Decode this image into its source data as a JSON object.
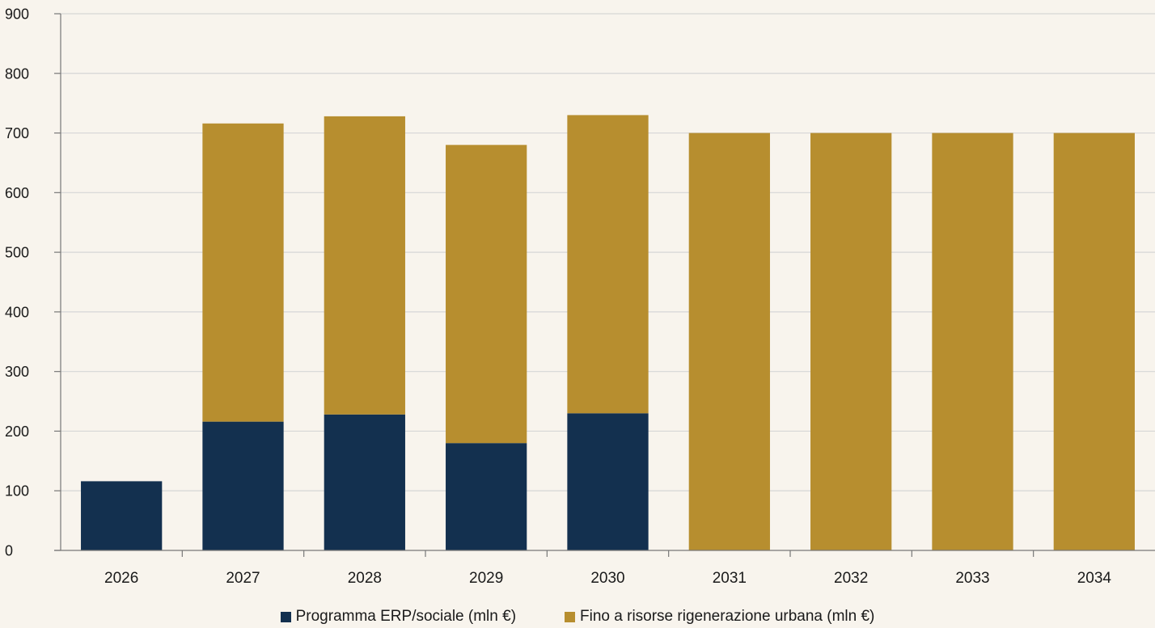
{
  "chart_data": {
    "type": "bar",
    "stacked": true,
    "categories": [
      "2026",
      "2027",
      "2028",
      "2029",
      "2030",
      "2031",
      "2032",
      "2033",
      "2034"
    ],
    "series": [
      {
        "name": "Programma ERP/sociale (mln €)",
        "color": "#13304f",
        "values": [
          116,
          216,
          228,
          180,
          230,
          0,
          0,
          0,
          0
        ]
      },
      {
        "name": "Fino a risorse rigenerazione urbana (mln €)",
        "color": "#b78e2f",
        "values": [
          0,
          500,
          500,
          500,
          500,
          700,
          700,
          700,
          700
        ]
      }
    ],
    "ylim": [
      0,
      900
    ],
    "yticks": [
      0,
      100,
      200,
      300,
      400,
      500,
      600,
      700,
      800,
      900
    ],
    "grid": true,
    "legend_position": "bottom"
  }
}
